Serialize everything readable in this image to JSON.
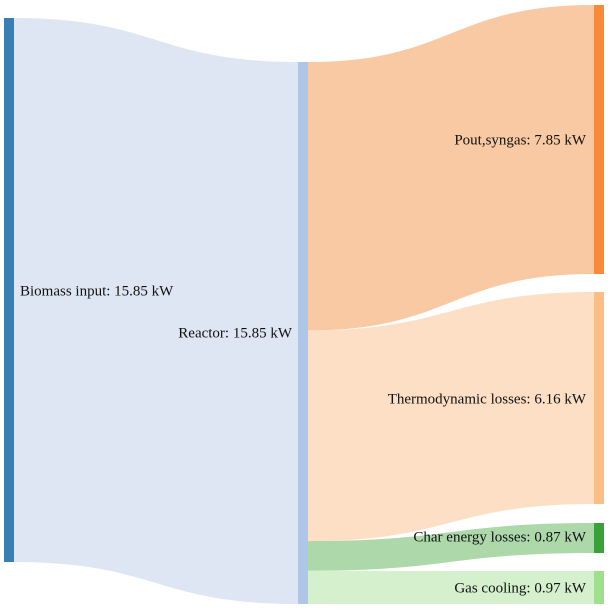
{
  "chart_data": {
    "type": "sankey",
    "unit": "kW",
    "nodes": [
      {
        "id": "biomass",
        "label": "Biomass input: 15.85 kW",
        "value": 15.85,
        "color": "#3a7fb3"
      },
      {
        "id": "reactor",
        "label": "Reactor: 15.85 kW",
        "value": 15.85,
        "color": "#aec7e8"
      },
      {
        "id": "syngas",
        "label": "Pout,syngas: 7.85 kW",
        "value": 7.85,
        "color": "#f98a3a"
      },
      {
        "id": "thermo",
        "label": "Thermodynamic losses: 6.16 kW",
        "value": 6.16,
        "color": "#fcbd86"
      },
      {
        "id": "char",
        "label": "Char energy losses: 0.87 kW",
        "value": 0.87,
        "color": "#3aa03a"
      },
      {
        "id": "cooling",
        "label": "Gas cooling: 0.97 kW",
        "value": 0.97,
        "color": "#9fe08e"
      }
    ],
    "links": [
      {
        "source": "biomass",
        "target": "reactor",
        "value": 15.85,
        "color": "#dde6f2"
      },
      {
        "source": "reactor",
        "target": "syngas",
        "value": 7.85,
        "color": "#f8c9a3"
      },
      {
        "source": "reactor",
        "target": "thermo",
        "value": 6.16,
        "color": "#fcdfc4"
      },
      {
        "source": "reactor",
        "target": "char",
        "value": 0.87,
        "color": "#acd8aa"
      },
      {
        "source": "reactor",
        "target": "cooling",
        "value": 0.97,
        "color": "#d5f0cc"
      }
    ]
  }
}
